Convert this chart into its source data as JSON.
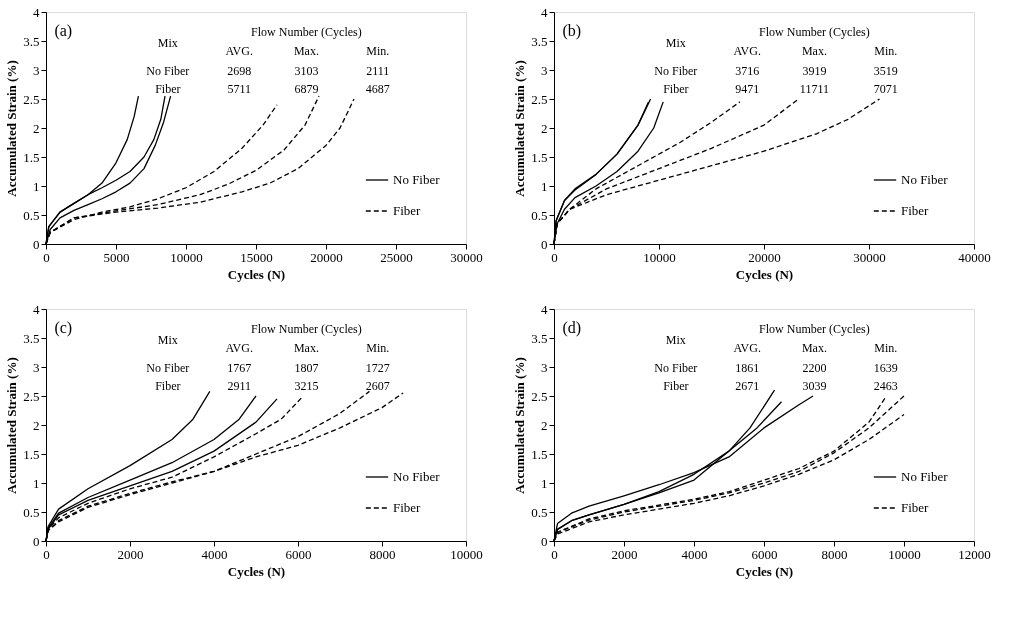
{
  "chart_data": [
    {
      "type": "line",
      "xlabel": "Cycles (N)",
      "ylabel": "Accumulated Strain (%)",
      "xlim": [
        0,
        30000
      ],
      "xticks": [
        0,
        5000,
        10000,
        15000,
        20000,
        25000,
        30000
      ],
      "ylim": [
        0,
        4
      ],
      "yticks": [
        0,
        0.5,
        1,
        1.5,
        2,
        2.5,
        3,
        3.5,
        4
      ],
      "legend": "bottom right",
      "annotations": [
        "(a)",
        "Mix",
        "Flow Number (Cycles)",
        "AVG.",
        "Max.",
        "Min.",
        "No Fiber",
        "2698",
        "3103",
        "2111",
        "Fiber",
        "5711",
        "6879",
        "4687"
      ],
      "series": [
        {
          "name": "No Fiber",
          "color": "#000000",
          "line_style": "solid",
          "x": [
            0,
            200,
            1000,
            2000,
            3000,
            4000,
            5000,
            5800,
            6300,
            6600
          ],
          "values": [
            0,
            0.3,
            0.55,
            0.7,
            0.85,
            1.05,
            1.4,
            1.8,
            2.2,
            2.55
          ]
        },
        {
          "color": "#000000",
          "line_style": "solid",
          "x": [
            0,
            200,
            1000,
            2000,
            3000,
            4000,
            5000,
            6000,
            7000,
            7700,
            8200,
            8500
          ],
          "values": [
            0,
            0.3,
            0.55,
            0.7,
            0.85,
            0.97,
            1.1,
            1.25,
            1.5,
            1.8,
            2.15,
            2.55
          ]
        },
        {
          "color": "#000000",
          "line_style": "solid",
          "x": [
            0,
            300,
            1000,
            2000,
            3000,
            4000,
            5000,
            6000,
            7000,
            7800,
            8400,
            8900
          ],
          "values": [
            0,
            0.25,
            0.45,
            0.58,
            0.68,
            0.78,
            0.9,
            1.05,
            1.3,
            1.7,
            2.1,
            2.55
          ]
        },
        {
          "name": "Fiber",
          "color": "#000000",
          "line_style": "dashed",
          "x": [
            0,
            300,
            2000,
            4000,
            6000,
            8000,
            10000,
            12000,
            14000,
            15500,
            16500
          ],
          "values": [
            0,
            0.2,
            0.42,
            0.55,
            0.64,
            0.78,
            0.97,
            1.25,
            1.65,
            2.05,
            2.4
          ]
        },
        {
          "color": "#000000",
          "line_style": "dashed",
          "x": [
            0,
            300,
            2000,
            5000,
            8000,
            11000,
            13000,
            15000,
            17000,
            18500,
            19500
          ],
          "values": [
            0,
            0.2,
            0.45,
            0.57,
            0.68,
            0.85,
            1.03,
            1.27,
            1.62,
            2.05,
            2.55
          ]
        },
        {
          "color": "#000000",
          "line_style": "dashed",
          "x": [
            0,
            300,
            2000,
            5000,
            8000,
            11000,
            14000,
            16000,
            18000,
            20000,
            21000,
            22000
          ],
          "values": [
            0,
            0.2,
            0.45,
            0.55,
            0.62,
            0.72,
            0.9,
            1.05,
            1.3,
            1.7,
            2.0,
            2.5
          ]
        }
      ]
    },
    {
      "type": "line",
      "xlabel": "Cycles (N)",
      "ylabel": "Accumulated Strain (%)",
      "xlim": [
        0,
        40000
      ],
      "xticks": [
        0,
        10000,
        20000,
        30000,
        40000
      ],
      "ylim": [
        0,
        4
      ],
      "yticks": [
        0,
        0.5,
        1,
        1.5,
        2,
        2.5,
        3,
        3.5,
        4
      ],
      "legend": "bottom right",
      "annotations": [
        "(b)",
        "Mix",
        "Flow Number (Cycles)",
        "AVG.",
        "Max.",
        "Min.",
        "No Fiber",
        "3716",
        "3919",
        "3519",
        "Fiber",
        "9471",
        "11711",
        "7071"
      ],
      "series": [
        {
          "name": "No Fiber",
          "color": "#000000",
          "line_style": "solid",
          "x": [
            0,
            200,
            1000,
            2000,
            4000,
            6000,
            8000,
            9200
          ],
          "values": [
            0,
            0.4,
            0.75,
            0.95,
            1.2,
            1.55,
            2.05,
            2.5
          ]
        },
        {
          "color": "#000000",
          "line_style": "solid",
          "x": [
            0,
            200,
            1000,
            2000,
            4000,
            6000,
            8000,
            9000
          ],
          "values": [
            0,
            0.4,
            0.75,
            0.93,
            1.2,
            1.55,
            2.05,
            2.45
          ]
        },
        {
          "color": "#000000",
          "line_style": "solid",
          "x": [
            0,
            300,
            1000,
            2000,
            4000,
            6000,
            8000,
            9500,
            10400
          ],
          "values": [
            0,
            0.35,
            0.6,
            0.8,
            1.0,
            1.25,
            1.6,
            2.0,
            2.45
          ]
        },
        {
          "name": "Fiber",
          "color": "#000000",
          "line_style": "dashed",
          "x": [
            0,
            300,
            1500,
            4000,
            8000,
            12000,
            15000,
            17700
          ],
          "values": [
            0,
            0.35,
            0.6,
            0.95,
            1.35,
            1.75,
            2.1,
            2.45
          ]
        },
        {
          "color": "#000000",
          "line_style": "dashed",
          "x": [
            0,
            300,
            1500,
            5000,
            10000,
            15000,
            20000,
            23300
          ],
          "values": [
            0,
            0.35,
            0.6,
            0.95,
            1.3,
            1.65,
            2.05,
            2.5
          ]
        },
        {
          "color": "#000000",
          "line_style": "dashed",
          "x": [
            0,
            300,
            1500,
            5000,
            10000,
            15000,
            20000,
            25000,
            28000,
            31000
          ],
          "values": [
            0,
            0.35,
            0.6,
            0.85,
            1.1,
            1.35,
            1.6,
            1.9,
            2.15,
            2.5
          ]
        }
      ]
    },
    {
      "type": "line",
      "xlabel": "Cycles (N)",
      "ylabel": "Accumulated Strain (%)",
      "xlim": [
        0,
        10000
      ],
      "xticks": [
        0,
        2000,
        4000,
        6000,
        8000,
        10000
      ],
      "ylim": [
        0,
        4
      ],
      "yticks": [
        0,
        0.5,
        1,
        1.5,
        2,
        2.5,
        3,
        3.5,
        4
      ],
      "legend": "bottom right",
      "annotations": [
        "(c)",
        "Mix",
        "Flow Number (Cycles)",
        "AVG.",
        "Max.",
        "Min.",
        "No Fiber",
        "1767",
        "1807",
        "1727",
        "Fiber",
        "2911",
        "3215",
        "2607"
      ],
      "series": [
        {
          "name": "No Fiber",
          "color": "#000000",
          "line_style": "solid",
          "x": [
            0,
            50,
            300,
            1000,
            2000,
            3000,
            3500,
            3900
          ],
          "values": [
            0,
            0.25,
            0.55,
            0.9,
            1.3,
            1.75,
            2.1,
            2.58
          ]
        },
        {
          "color": "#000000",
          "line_style": "solid",
          "x": [
            0,
            50,
            300,
            1000,
            2000,
            3000,
            4000,
            4600,
            5000
          ],
          "values": [
            0,
            0.22,
            0.48,
            0.75,
            1.05,
            1.35,
            1.75,
            2.1,
            2.5
          ]
        },
        {
          "color": "#000000",
          "line_style": "solid",
          "x": [
            0,
            50,
            300,
            1000,
            2000,
            3000,
            4000,
            5000,
            5500
          ],
          "values": [
            0,
            0.2,
            0.45,
            0.7,
            0.95,
            1.2,
            1.55,
            2.05,
            2.45
          ]
        },
        {
          "name": "Fiber",
          "color": "#000000",
          "line_style": "dashed",
          "x": [
            0,
            50,
            300,
            1000,
            2000,
            3000,
            4000,
            5000,
            5600,
            6100
          ],
          "values": [
            0,
            0.2,
            0.4,
            0.65,
            0.9,
            1.1,
            1.45,
            1.85,
            2.1,
            2.48
          ]
        },
        {
          "color": "#000000",
          "line_style": "dashed",
          "x": [
            0,
            50,
            300,
            1000,
            2000,
            3000,
            4000,
            5000,
            6000,
            7000,
            7700
          ],
          "values": [
            0,
            0.18,
            0.35,
            0.6,
            0.82,
            1.02,
            1.2,
            1.5,
            1.8,
            2.2,
            2.58
          ]
        },
        {
          "color": "#000000",
          "line_style": "dashed",
          "x": [
            0,
            50,
            300,
            1000,
            2000,
            3000,
            4000,
            5000,
            6000,
            7000,
            8000,
            8500
          ],
          "values": [
            0,
            0.18,
            0.33,
            0.58,
            0.8,
            1.0,
            1.2,
            1.45,
            1.65,
            1.95,
            2.3,
            2.55
          ]
        }
      ]
    },
    {
      "type": "line",
      "xlabel": "Cycles (N)",
      "ylabel": "Accumulated Strain (%)",
      "xlim": [
        0,
        12000
      ],
      "xticks": [
        0,
        2000,
        4000,
        6000,
        8000,
        10000,
        12000
      ],
      "ylim": [
        0,
        4
      ],
      "yticks": [
        0,
        0.5,
        1,
        1.5,
        2,
        2.5,
        3,
        3.5,
        4
      ],
      "legend": "bottom right",
      "annotations": [
        "(d)",
        "Mix",
        "Flow Number (Cycles)",
        "AVG.",
        "Max.",
        "Min.",
        "No Fiber",
        "1861",
        "2200",
        "1639",
        "Fiber",
        "2671",
        "3039",
        "2463"
      ],
      "series": [
        {
          "name": "No Fiber",
          "color": "#000000",
          "line_style": "solid",
          "x": [
            0,
            100,
            500,
            1000,
            2000,
            3000,
            4000,
            5000,
            5600,
            6300
          ],
          "values": [
            0,
            0.2,
            0.35,
            0.45,
            0.63,
            0.83,
            1.05,
            1.55,
            1.95,
            2.6
          ]
        },
        {
          "color": "#000000",
          "line_style": "solid",
          "x": [
            0,
            100,
            500,
            1000,
            2000,
            3000,
            4000,
            5000,
            5800,
            6500
          ],
          "values": [
            0,
            0.2,
            0.35,
            0.45,
            0.63,
            0.85,
            1.15,
            1.55,
            1.95,
            2.4
          ]
        },
        {
          "color": "#000000",
          "line_style": "solid",
          "x": [
            0,
            100,
            500,
            1000,
            2000,
            3000,
            4000,
            5000,
            6000,
            7000,
            7400
          ],
          "values": [
            0,
            0.3,
            0.48,
            0.6,
            0.78,
            0.97,
            1.18,
            1.45,
            1.95,
            2.35,
            2.5
          ]
        },
        {
          "name": "Fiber",
          "color": "#000000",
          "line_style": "dashed",
          "x": [
            0,
            100,
            1000,
            2000,
            3000,
            4000,
            5000,
            6000,
            7000,
            8000,
            9000,
            9500
          ],
          "values": [
            0,
            0.15,
            0.38,
            0.52,
            0.62,
            0.72,
            0.85,
            1.05,
            1.25,
            1.55,
            2.05,
            2.5
          ]
        },
        {
          "color": "#000000",
          "line_style": "dashed",
          "x": [
            0,
            100,
            1000,
            2000,
            3000,
            4000,
            5000,
            6000,
            7000,
            8000,
            9000,
            10000
          ],
          "values": [
            0,
            0.15,
            0.36,
            0.5,
            0.6,
            0.7,
            0.83,
            1.0,
            1.2,
            1.52,
            1.95,
            2.5
          ]
        },
        {
          "color": "#000000",
          "line_style": "dashed",
          "x": [
            0,
            100,
            1000,
            2000,
            3000,
            4000,
            5000,
            6000,
            7000,
            8000,
            9000,
            10000
          ],
          "values": [
            0,
            0.12,
            0.33,
            0.45,
            0.55,
            0.65,
            0.78,
            0.95,
            1.15,
            1.4,
            1.75,
            2.18
          ]
        }
      ]
    }
  ]
}
